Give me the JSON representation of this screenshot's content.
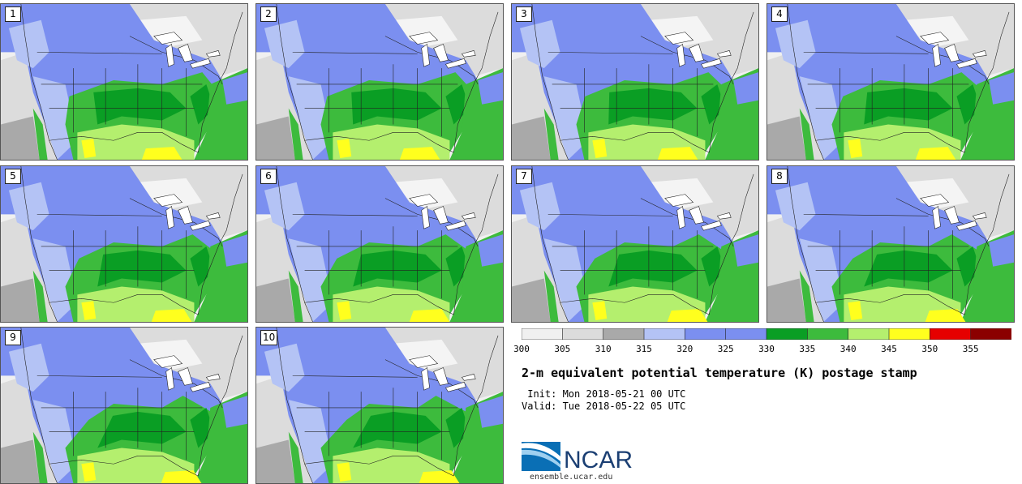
{
  "members": [
    {
      "label": "1"
    },
    {
      "label": "2"
    },
    {
      "label": "3"
    },
    {
      "label": "4"
    },
    {
      "label": "5"
    },
    {
      "label": "6"
    },
    {
      "label": "7"
    },
    {
      "label": "8"
    },
    {
      "label": "9"
    },
    {
      "label": "10"
    }
  ],
  "colorbar": {
    "ticks": [
      "300",
      "305",
      "310",
      "315",
      "320",
      "325",
      "330",
      "335",
      "340",
      "345",
      "350",
      "355"
    ],
    "colors": [
      "#f0f0f0",
      "#dcdcdc",
      "#a9a9a9",
      "#b4c3f5",
      "#7b8ff0",
      "#7b8ff0",
      "#0a9e24",
      "#3dbb3d",
      "#b4ef6e",
      "#ffff1e",
      "#e60000",
      "#8b0000"
    ]
  },
  "title": "2-m equivalent potential temperature (K) postage stamp",
  "init_text": " Init: Mon 2018-05-21 00 UTC",
  "valid_text": "Valid: Tue 2018-05-22 05 UTC",
  "logo_text": "NCAR",
  "url": "ensemble.ucar.edu",
  "colors": {
    "land_cold": "#7b8ff0",
    "land_cool": "#b4c3f5",
    "land_warm": "#3dbb3d",
    "land_dark": "#0a9e24",
    "land_hot": "#b4ef6e",
    "land_very_hot": "#ffff1e",
    "grey_light": "#dcdcdc",
    "grey_mid": "#a9a9a9",
    "ocean": "#f0f0f0"
  }
}
